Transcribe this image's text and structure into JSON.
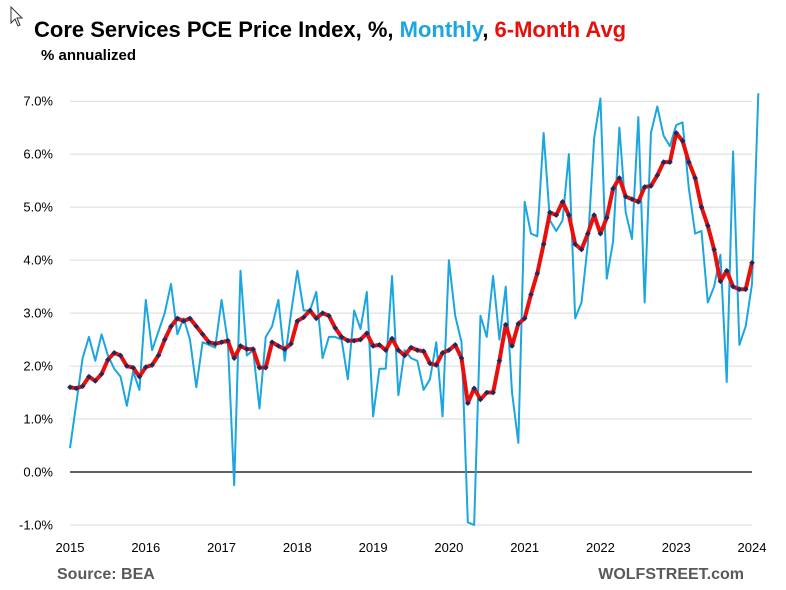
{
  "chart_data": {
    "type": "line",
    "title_parts": {
      "prefix": "Core Services PCE Price Index, %, ",
      "series1": "Monthly",
      "separator": ", ",
      "series2": "6-Month Avg"
    },
    "subtitle": "% annualized",
    "source": "Source: BEA",
    "brand": "WOLFSTREET.com",
    "ylim": [
      -1,
      7.4
    ],
    "xlim": [
      2015,
      2024
    ],
    "yticks": [
      {
        "value": -1,
        "label": "-1.0%"
      },
      {
        "value": 0,
        "label": "0.0%"
      },
      {
        "value": 1,
        "label": "1.0%"
      },
      {
        "value": 2,
        "label": "2.0%"
      },
      {
        "value": 3,
        "label": "3.0%"
      },
      {
        "value": 4,
        "label": "4.0%"
      },
      {
        "value": 5,
        "label": "5.0%"
      },
      {
        "value": 6,
        "label": "6.0%"
      },
      {
        "value": 7,
        "label": "7.0%"
      }
    ],
    "xticks": [
      {
        "value": 2015,
        "label": "2015"
      },
      {
        "value": 2016,
        "label": "2016"
      },
      {
        "value": 2017,
        "label": "2017"
      },
      {
        "value": 2018,
        "label": "2018"
      },
      {
        "value": 2019,
        "label": "2019"
      },
      {
        "value": 2020,
        "label": "2020"
      },
      {
        "value": 2021,
        "label": "2021"
      },
      {
        "value": 2022,
        "label": "2022"
      },
      {
        "value": 2023,
        "label": "2023"
      },
      {
        "value": 2024,
        "label": "2024"
      }
    ],
    "series": [
      {
        "name": "Monthly",
        "color": "#1BA6E0",
        "start": 2015,
        "step_months": 1,
        "values": [
          0.45,
          1.3,
          2.15,
          2.55,
          2.1,
          2.6,
          2.2,
          1.95,
          1.8,
          1.25,
          1.9,
          1.55,
          3.25,
          2.3,
          2.65,
          3.0,
          3.55,
          2.6,
          2.9,
          2.5,
          1.6,
          2.45,
          2.4,
          2.35,
          3.25,
          2.45,
          -0.25,
          3.8,
          2.2,
          2.3,
          1.2,
          2.55,
          2.75,
          3.25,
          2.1,
          3.0,
          3.8,
          3.05,
          3.05,
          3.4,
          2.15,
          2.55,
          2.55,
          2.5,
          1.75,
          3.05,
          2.7,
          3.4,
          1.05,
          1.95,
          1.95,
          3.7,
          1.45,
          2.3,
          2.15,
          2.1,
          1.55,
          1.75,
          2.45,
          1.05,
          4.0,
          2.95,
          2.45,
          -0.95,
          -1.0,
          2.95,
          2.55,
          3.7,
          2.5,
          3.5,
          1.5,
          0.55,
          5.1,
          4.5,
          4.45,
          6.4,
          4.75,
          4.55,
          4.75,
          6.0,
          2.9,
          3.2,
          4.3,
          6.3,
          7.05,
          3.65,
          4.35,
          6.5,
          4.9,
          4.4,
          6.7,
          3.2,
          6.4,
          6.9,
          6.35,
          6.15,
          6.55,
          6.6,
          5.35,
          4.5,
          4.55,
          3.2,
          3.5,
          4.1,
          1.7,
          6.05,
          2.4,
          2.75,
          3.55,
          7.15
        ]
      },
      {
        "name": "6-Month Avg",
        "color": "#E8100C",
        "marker_color": "#1F2A5E",
        "start": 2015,
        "step_months": 1,
        "values": [
          1.6,
          1.58,
          1.62,
          1.8,
          1.72,
          1.85,
          2.12,
          2.25,
          2.2,
          2.0,
          1.97,
          1.8,
          1.98,
          2.02,
          2.2,
          2.5,
          2.75,
          2.9,
          2.85,
          2.9,
          2.75,
          2.6,
          2.45,
          2.42,
          2.45,
          2.48,
          2.15,
          2.38,
          2.32,
          2.32,
          1.97,
          1.97,
          2.45,
          2.38,
          2.32,
          2.42,
          2.85,
          2.92,
          3.05,
          2.9,
          3.0,
          2.95,
          2.72,
          2.55,
          2.48,
          2.48,
          2.5,
          2.62,
          2.38,
          2.4,
          2.3,
          2.52,
          2.3,
          2.2,
          2.35,
          2.3,
          2.28,
          2.05,
          2.02,
          2.25,
          2.3,
          2.4,
          2.15,
          1.3,
          1.58,
          1.37,
          1.5,
          1.5,
          2.1,
          2.78,
          2.38,
          2.8,
          2.9,
          3.35,
          3.75,
          4.3,
          4.9,
          4.85,
          5.1,
          4.85,
          4.3,
          4.2,
          4.5,
          4.85,
          4.5,
          4.8,
          5.35,
          5.55,
          5.2,
          5.15,
          5.1,
          5.38,
          5.4,
          5.6,
          5.85,
          5.85,
          6.4,
          6.25,
          5.85,
          5.55,
          5.0,
          4.65,
          4.2,
          3.6,
          3.8,
          3.5,
          3.45,
          3.45,
          3.95
        ]
      }
    ]
  }
}
